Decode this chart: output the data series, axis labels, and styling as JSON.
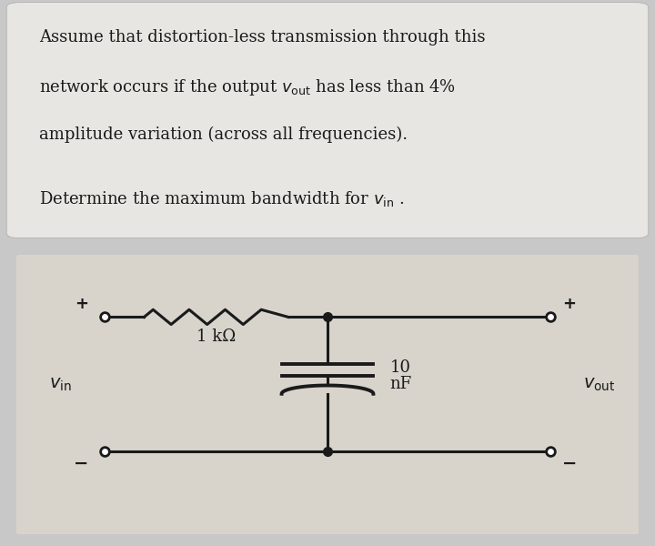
{
  "bg_outer": "#c8c8c8",
  "bg_text_box": "#e8e6e2",
  "bg_circuit": "#d0ccc4",
  "line_color": "#1a1a1a",
  "text_color": "#1a1a1a",
  "font_size_text": 13.0,
  "fig_width": 7.2,
  "fig_height": 6.0,
  "dpi": 100,
  "text_line1": "Assume that distortion-less transmission through this",
  "text_line2_a": "network occurs if the output ",
  "text_line2_b": "v",
  "text_line2_c": "out",
  "text_line2_d": " has less than 4%",
  "text_line3": "amplitude variation (across all frequencies).",
  "text_line4_a": "Determine the maximum bandwidth for ",
  "text_line4_b": "v",
  "text_line4_c": "in",
  "text_line4_d": " ."
}
